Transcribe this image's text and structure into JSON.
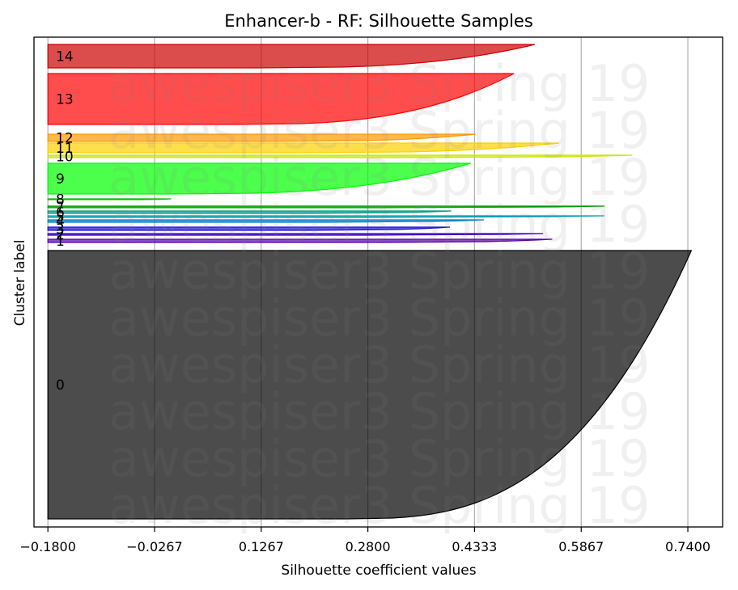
{
  "chart_data": {
    "type": "area",
    "title": "Enhancer-b - RF: Silhouette Samples",
    "xlabel": "Silhouette coefficient values",
    "ylabel": "Cluster label",
    "xlim": [
      -0.2,
      0.79
    ],
    "xticks": [
      -0.18,
      -0.0267,
      0.1267,
      0.28,
      0.4333,
      0.5867,
      0.74
    ],
    "xtick_labels": [
      "−0.1800",
      "−0.0267",
      "0.1267",
      "0.2800",
      "0.4333",
      "0.5867",
      "0.7400"
    ],
    "vertical_grid": true,
    "watermark": {
      "text": "awespiser3 Spring 19",
      "lines": 10
    },
    "clusters": [
      {
        "label": "0",
        "color": "#000000",
        "y_lower": 10,
        "y_upper": 342,
        "max_value": 0.745,
        "min_value": 0.25
      },
      {
        "label": "1",
        "color": "#5a00a8",
        "y_lower": 352,
        "y_upper": 356,
        "max_value": 0.545,
        "min_value": 0.3
      },
      {
        "label": "2",
        "color": "#3a00c8",
        "y_lower": 361,
        "y_upper": 363,
        "max_value": 0.532,
        "min_value": 0.28
      },
      {
        "label": "3",
        "color": "#1a10d8",
        "y_lower": 367,
        "y_upper": 371,
        "max_value": 0.398,
        "min_value": 0.2
      },
      {
        "label": "4",
        "color": "#0080c8",
        "y_lower": 377,
        "y_upper": 380,
        "max_value": 0.447,
        "min_value": 0.22
      },
      {
        "label": "5",
        "color": "#00a0b0",
        "y_lower": 383,
        "y_upper": 385,
        "max_value": 0.62,
        "min_value": 0.3
      },
      {
        "label": "6",
        "color": "#00a080",
        "y_lower": 388,
        "y_upper": 391,
        "max_value": 0.4,
        "min_value": 0.2
      },
      {
        "label": "7",
        "color": "#009a00",
        "y_lower": 395,
        "y_upper": 397,
        "max_value": 0.62,
        "min_value": 0.3
      },
      {
        "label": "8",
        "color": "#00c000",
        "y_lower": 405,
        "y_upper": 406,
        "max_value": -0.003,
        "min_value": -0.05
      },
      {
        "label": "9",
        "color": "#00ff00",
        "y_lower": 412,
        "y_upper": 450,
        "max_value": 0.428,
        "min_value": 0.0
      },
      {
        "label": "10",
        "color": "#c8e800",
        "y_lower": 457,
        "y_upper": 460,
        "max_value": 0.66,
        "min_value": 0.35
      },
      {
        "label": "11",
        "color": "#ffd000",
        "y_lower": 463,
        "y_upper": 475,
        "max_value": 0.555,
        "min_value": 0.18
      },
      {
        "label": "12",
        "color": "#ff9a00",
        "y_lower": 477,
        "y_upper": 486,
        "max_value": 0.435,
        "min_value": 0.14
      },
      {
        "label": "13",
        "color": "#ff0000",
        "y_lower": 498,
        "y_upper": 561,
        "max_value": 0.49,
        "min_value": 0.09
      },
      {
        "label": "14",
        "color": "#cc0000",
        "y_lower": 568,
        "y_upper": 597,
        "max_value": 0.52,
        "min_value": 0.12
      }
    ],
    "ylim": [
      0,
      606
    ]
  }
}
